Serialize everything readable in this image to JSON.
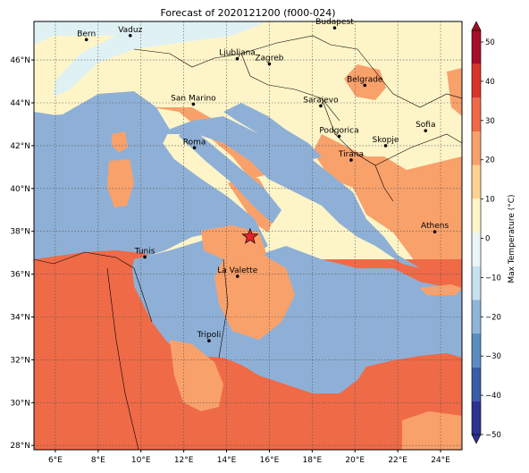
{
  "title": "Forecast of 2020121200 (f000-024)",
  "colorbar": {
    "label": "Max Temperature (°C)",
    "ticks": [
      "50",
      "40",
      "30",
      "20",
      "10",
      "0",
      "−10",
      "−20",
      "−30",
      "−40",
      "−50"
    ],
    "colors": [
      "#2c3290",
      "#3b5ca8",
      "#5b8cc2",
      "#8fb6d9",
      "#c5e2ee",
      "#ecf6f6",
      "#fdf5c8",
      "#fdd291",
      "#f9a16b",
      "#ef6a47",
      "#d7342a",
      "#a50e26"
    ],
    "cmap": "RdYlBu_r"
  },
  "axes": {
    "lon_ticks": [
      "6°E",
      "8°E",
      "10°E",
      "12°E",
      "14°E",
      "16°E",
      "18°E",
      "20°E",
      "22°E",
      "24°E"
    ],
    "lat_ticks": [
      "46°N",
      "44°N",
      "42°N",
      "40°N",
      "38°N",
      "36°N",
      "34°N",
      "32°N",
      "30°N",
      "28°N"
    ],
    "grid": true,
    "extent": {
      "lon": [
        5,
        25
      ],
      "lat": [
        27.8,
        47.8
      ]
    }
  },
  "cities": [
    {
      "name": "Bern",
      "lon": 7.45,
      "lat": 46.95
    },
    {
      "name": "Vaduz",
      "lon": 9.5,
      "lat": 47.14
    },
    {
      "name": "Budapest",
      "lon": 19.05,
      "lat": 47.5
    },
    {
      "name": "Ljubljana",
      "lon": 14.5,
      "lat": 46.06
    },
    {
      "name": "Zagreb",
      "lon": 16.0,
      "lat": 45.82
    },
    {
      "name": "San Marino",
      "lon": 12.45,
      "lat": 43.94
    },
    {
      "name": "Belgrade",
      "lon": 20.46,
      "lat": 44.82
    },
    {
      "name": "Sarajevo",
      "lon": 18.4,
      "lat": 43.86
    },
    {
      "name": "Sofia",
      "lon": 23.3,
      "lat": 42.7
    },
    {
      "name": "Roma",
      "lon": 12.5,
      "lat": 41.9
    },
    {
      "name": "Podgorica",
      "lon": 19.26,
      "lat": 42.44
    },
    {
      "name": "Skopje",
      "lon": 21.43,
      "lat": 42.0
    },
    {
      "name": "Tirana",
      "lon": 19.82,
      "lat": 41.33
    },
    {
      "name": "Athens",
      "lon": 23.73,
      "lat": 37.98
    },
    {
      "name": "Tunis",
      "lon": 10.18,
      "lat": 36.8
    },
    {
      "name": "La Valette",
      "lon": 14.51,
      "lat": 35.9
    },
    {
      "name": "Tripoli",
      "lon": 13.18,
      "lat": 32.89
    }
  ],
  "marker": {
    "symbol": "star",
    "lon": 15.1,
    "lat": 37.75,
    "color": "#e8242b"
  }
}
